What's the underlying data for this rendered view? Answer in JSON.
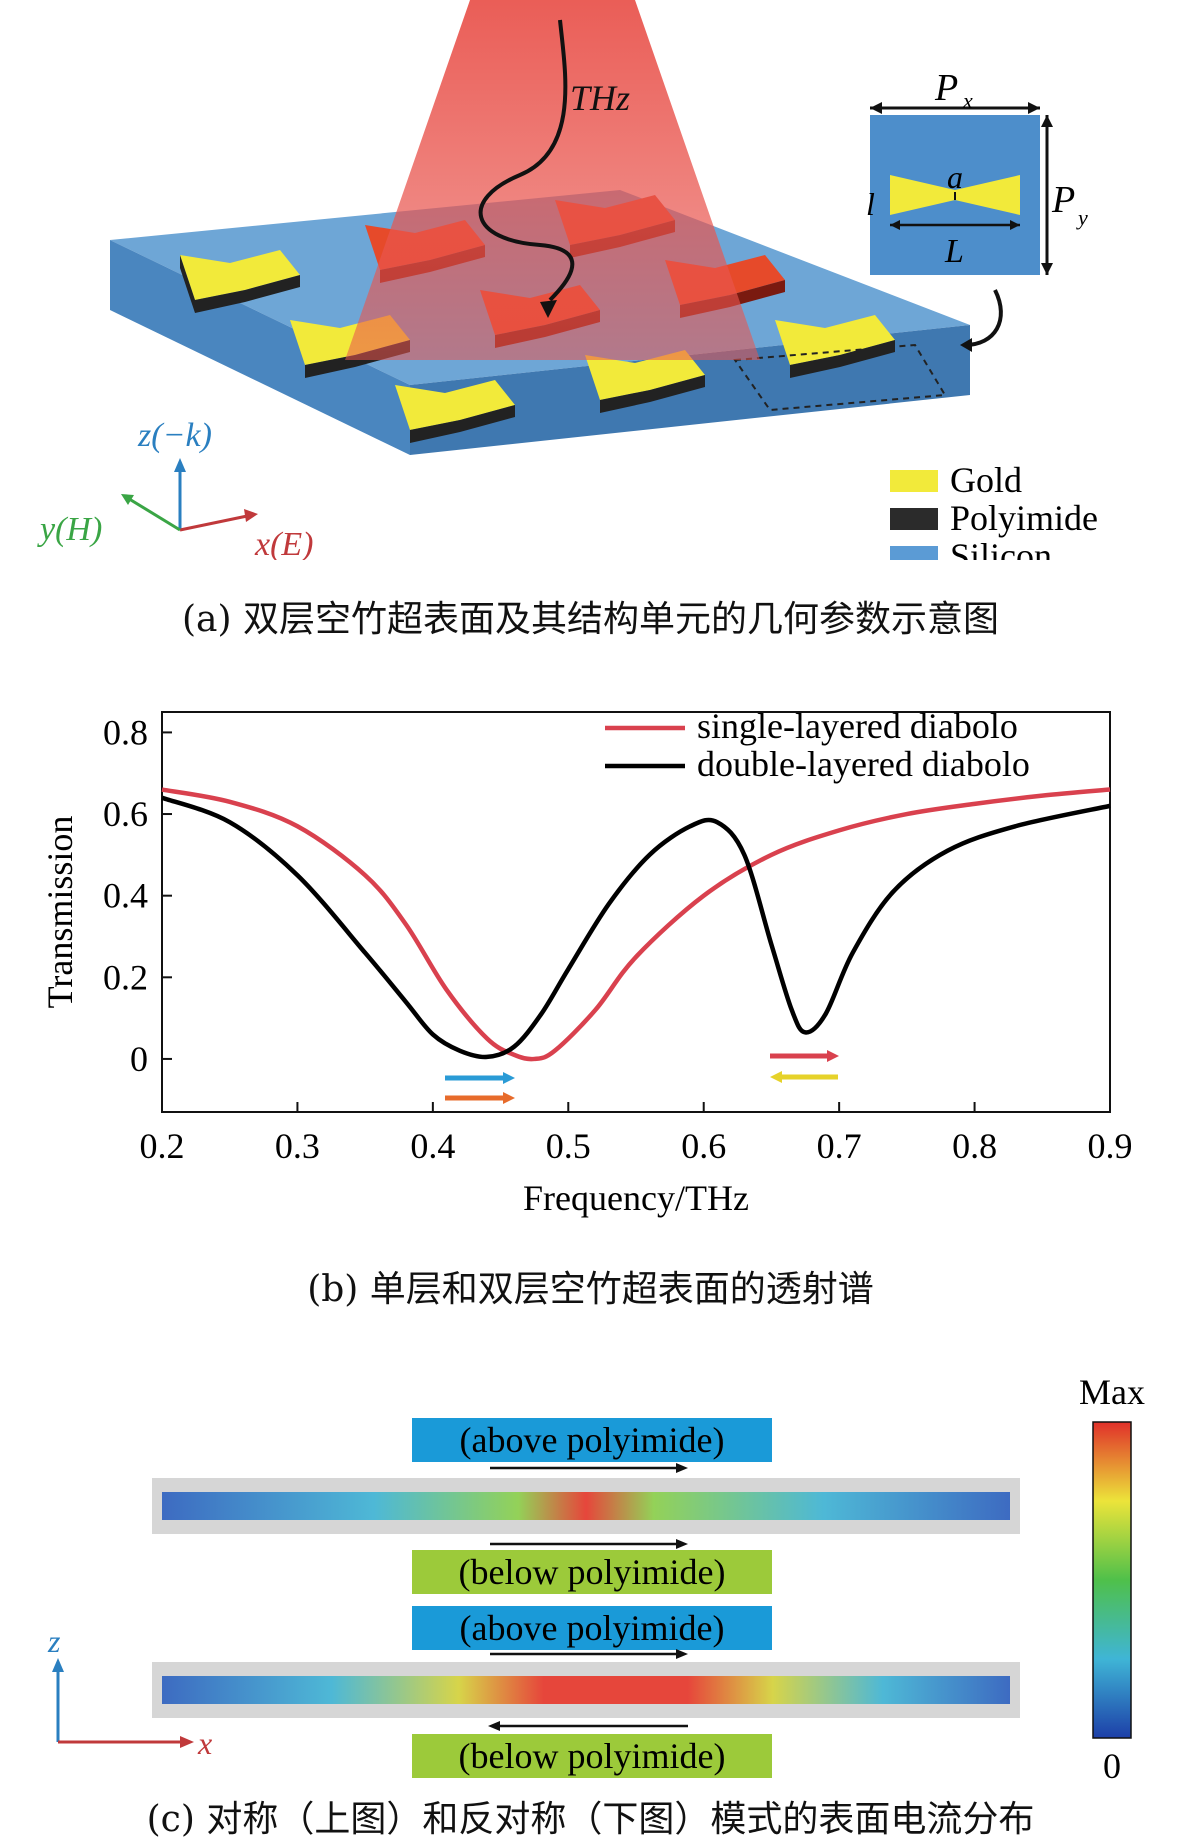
{
  "panel_a": {
    "caption": "(a) 双层空竹超表面及其结构单元的几何参数示意图",
    "beam_label": "THz",
    "axes": {
      "z": "z(−k)",
      "y": "y(H)",
      "x": "x(E)"
    },
    "unit_cell": {
      "px": "P",
      "px_sub": "x",
      "py": "P",
      "py_sub": "y",
      "a": "a",
      "l": "l",
      "L": "L"
    },
    "legend": [
      {
        "label": "Gold",
        "color": "#f2ea3a"
      },
      {
        "label": "Polyimide",
        "color": "#2b2b2b"
      },
      {
        "label": "Silicon",
        "color": "#5b9bd5"
      }
    ]
  },
  "panel_b": {
    "caption": "(b) 单层和双层空竹超表面的透射谱"
  },
  "chart_data": {
    "type": "line",
    "xlabel": "Frequency/THz",
    "ylabel": "Transmission",
    "xlim": [
      0.2,
      0.9
    ],
    "ylim": [
      -0.13,
      0.85
    ],
    "xticks": [
      "0.2",
      "0.3",
      "0.4",
      "0.5",
      "0.6",
      "0.7",
      "0.8",
      "0.9"
    ],
    "yticks": [
      "0",
      "0.2",
      "0.4",
      "0.6",
      "0.8"
    ],
    "legend_position": "top-right",
    "series": [
      {
        "name": "single-layered diabolo",
        "color": "#d9414e",
        "x": [
          0.2,
          0.25,
          0.3,
          0.35,
          0.38,
          0.41,
          0.44,
          0.46,
          0.475,
          0.49,
          0.52,
          0.55,
          0.6,
          0.65,
          0.7,
          0.75,
          0.8,
          0.85,
          0.9
        ],
        "y": [
          0.66,
          0.63,
          0.57,
          0.45,
          0.33,
          0.17,
          0.05,
          0.01,
          0.0,
          0.02,
          0.12,
          0.25,
          0.4,
          0.5,
          0.56,
          0.6,
          0.625,
          0.645,
          0.66
        ]
      },
      {
        "name": "double-layered diabolo",
        "color": "#000000",
        "x": [
          0.2,
          0.25,
          0.3,
          0.35,
          0.38,
          0.4,
          0.42,
          0.44,
          0.46,
          0.48,
          0.5,
          0.53,
          0.56,
          0.59,
          0.61,
          0.63,
          0.65,
          0.665,
          0.675,
          0.69,
          0.71,
          0.74,
          0.78,
          0.83,
          0.9
        ],
        "y": [
          0.64,
          0.58,
          0.45,
          0.26,
          0.14,
          0.06,
          0.02,
          0.005,
          0.03,
          0.11,
          0.22,
          0.38,
          0.5,
          0.57,
          0.58,
          0.5,
          0.28,
          0.12,
          0.065,
          0.11,
          0.26,
          0.41,
          0.51,
          0.57,
          0.62
        ]
      }
    ]
  },
  "panel_c": {
    "caption": "(c) 对称（上图）和反对称（下图）模式的表面电流分布",
    "above_label": "(above polyimide)",
    "below_label": "(below polyimide)",
    "colorbar_max": "Max",
    "colorbar_min": "0",
    "axis_z": "z",
    "axis_x": "x"
  }
}
